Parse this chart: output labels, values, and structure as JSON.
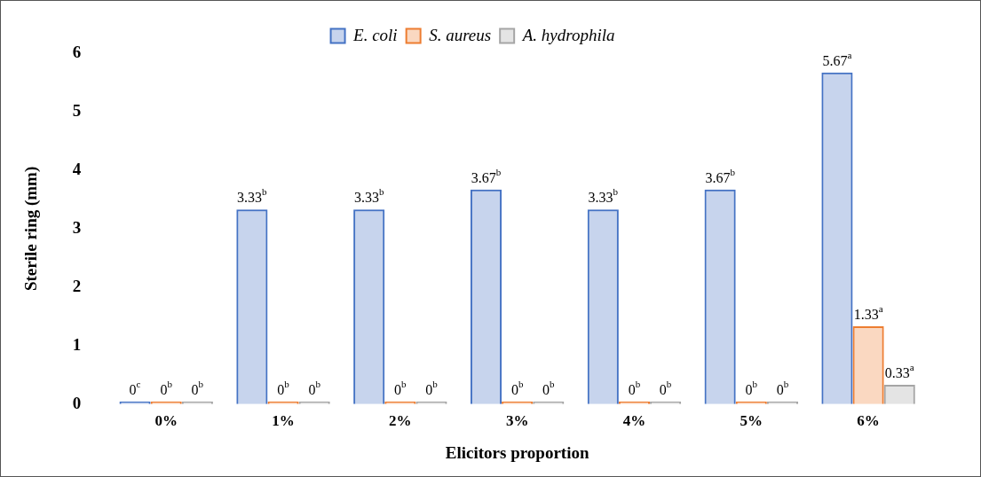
{
  "chart_data": {
    "type": "bar",
    "xlabel": "Elicitors proportion",
    "ylabel": "Sterile ring (mm)",
    "categories": [
      "0%",
      "1%",
      "2%",
      "3%",
      "4%",
      "5%",
      "6%"
    ],
    "series": [
      {
        "name": "E. coli",
        "color": "#4472c4",
        "values": [
          0,
          3.33,
          3.33,
          3.67,
          3.33,
          3.67,
          5.67
        ],
        "value_labels": [
          "0$^{c}$",
          "3.33$^{b}$",
          "3.33$^{b}$",
          "3.67$^{b}$",
          "3.33$^{b}$",
          "3.67$^{b}$",
          "5.67$^{a}$"
        ]
      },
      {
        "name": "S. aureus",
        "color": "#ed7d31",
        "values": [
          0,
          0,
          0,
          0,
          0,
          0,
          1.33
        ],
        "value_labels": [
          "0$^{b}$",
          "0$^{b}$",
          "0$^{b}$",
          "0$^{b}$",
          "0$^{b}$",
          "0$^{b}$",
          "1.33$^{a}$"
        ]
      },
      {
        "name": "A. hydrophila",
        "color": "#a5a5a5",
        "values": [
          0,
          0,
          0,
          0,
          0,
          0,
          0.33
        ],
        "value_labels": [
          "0$^{b}$",
          "0$^{b}$",
          "0$^{b}$",
          "0$^{b}$",
          "0$^{b}$",
          "0$^{b}$",
          "0.33$^{a}$"
        ]
      }
    ],
    "ylim": [
      0,
      6
    ],
    "yticks": [
      0,
      1,
      2,
      3,
      4,
      5,
      6
    ],
    "grid": false,
    "legend": "top"
  }
}
